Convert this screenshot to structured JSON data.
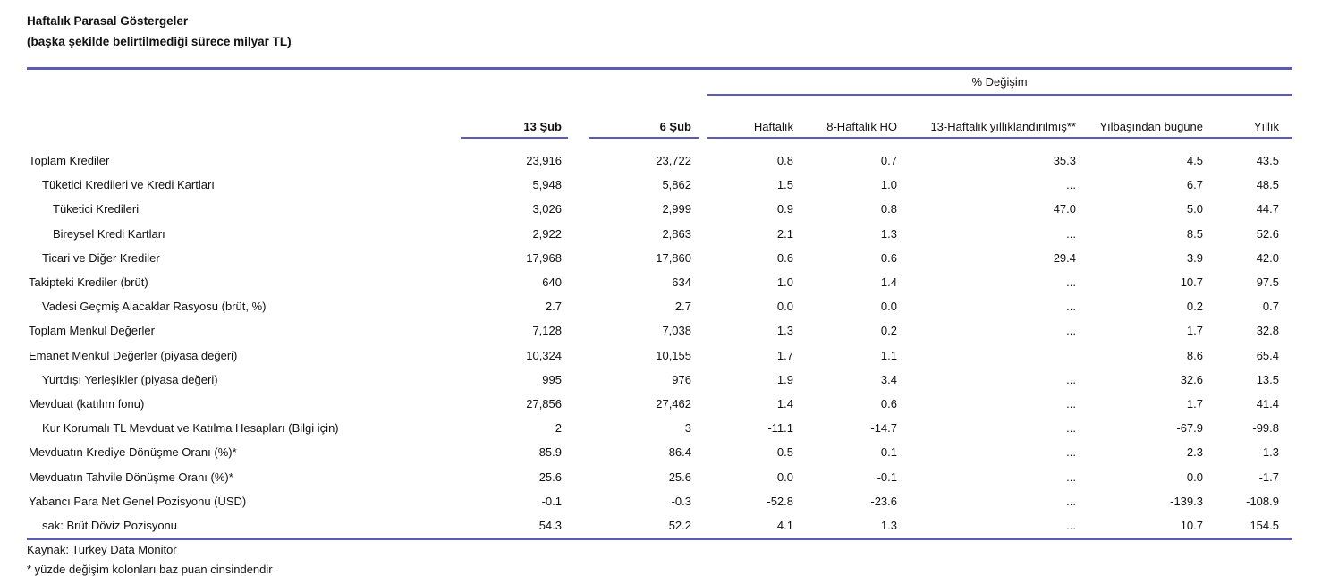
{
  "page": {
    "title": "Haftalık Parasal Göstergeler",
    "subtitle": "(başka şekilde belirtilmediği sürece milyar TL)"
  },
  "colors": {
    "rule": "#5b5bb5",
    "text": "#111111"
  },
  "table": {
    "group_header": "% Değişim",
    "columns": [
      {
        "text": "13 Şub",
        "bold": true
      },
      {
        "text": "6 Şub",
        "bold": true
      },
      {
        "text": "Haftalık",
        "bold": false
      },
      {
        "text": "8-Haftalık HO",
        "bold": false
      },
      {
        "text": "13-Haftalık\nyıllıklandırılmış**",
        "bold": false
      },
      {
        "text": "Yılbaşından\nbugüne",
        "bold": false
      },
      {
        "text": "Yıllık",
        "bold": false
      }
    ],
    "rows": [
      {
        "label": "Toplam Krediler",
        "indent": 0,
        "values": [
          "23,916",
          "23,722",
          "0.8",
          "0.7",
          "35.3",
          "4.5",
          "43.5"
        ]
      },
      {
        "label": "Tüketici Kredileri ve Kredi Kartları",
        "indent": 1,
        "values": [
          "5,948",
          "5,862",
          "1.5",
          "1.0",
          "...",
          "6.7",
          "48.5"
        ]
      },
      {
        "label": "Tüketici Kredileri",
        "indent": 2,
        "values": [
          "3,026",
          "2,999",
          "0.9",
          "0.8",
          "47.0",
          "5.0",
          "44.7"
        ]
      },
      {
        "label": "Bireysel Kredi Kartları",
        "indent": 2,
        "values": [
          "2,922",
          "2,863",
          "2.1",
          "1.3",
          "...",
          "8.5",
          "52.6"
        ]
      },
      {
        "label": "Ticari ve Diğer Krediler",
        "indent": 1,
        "values": [
          "17,968",
          "17,860",
          "0.6",
          "0.6",
          "29.4",
          "3.9",
          "42.0"
        ]
      },
      {
        "label": "Takipteki Krediler (brüt)",
        "indent": 0,
        "values": [
          "640",
          "634",
          "1.0",
          "1.4",
          "...",
          "10.7",
          "97.5"
        ]
      },
      {
        "label": "Vadesi Geçmiş Alacaklar Rasyosu (brüt, %)",
        "indent": 1,
        "values": [
          "2.7",
          "2.7",
          "0.0",
          "0.0",
          "...",
          "0.2",
          "0.7"
        ]
      },
      {
        "label": "Toplam Menkul Değerler",
        "indent": 0,
        "values": [
          "7,128",
          "7,038",
          "1.3",
          "0.2",
          "...",
          "1.7",
          "32.8"
        ]
      },
      {
        "label": "Emanet Menkul Değerler (piyasa değeri)",
        "indent": 0,
        "values": [
          "10,324",
          "10,155",
          "1.7",
          "1.1",
          "",
          "8.6",
          "65.4"
        ]
      },
      {
        "label": "Yurtdışı Yerleşikler (piyasa değeri)",
        "indent": 1,
        "values": [
          "995",
          "976",
          "1.9",
          "3.4",
          "...",
          "32.6",
          "13.5"
        ]
      },
      {
        "label": "Mevduat (katılım fonu)",
        "indent": 0,
        "values": [
          "27,856",
          "27,462",
          "1.4",
          "0.6",
          "...",
          "1.7",
          "41.4"
        ]
      },
      {
        "label": "Kur Korumalı TL Mevduat ve Katılma Hesapları (Bilgi için)",
        "indent": 1,
        "values": [
          "2",
          "3",
          "-11.1",
          "-14.7",
          "...",
          "-67.9",
          "-99.8"
        ]
      },
      {
        "label": "Mevduatın Krediye Dönüşme Oranı (%)*",
        "indent": 0,
        "values": [
          "85.9",
          "86.4",
          "-0.5",
          "0.1",
          "...",
          "2.3",
          "1.3"
        ]
      },
      {
        "label": "Mevduatın Tahvile Dönüşme Oranı (%)*",
        "indent": 0,
        "values": [
          "25.6",
          "25.6",
          "0.0",
          "-0.1",
          "...",
          "0.0",
          "-1.7"
        ]
      },
      {
        "label": "Yabancı Para Net Genel Pozisyonu (USD)",
        "indent": 0,
        "values": [
          "-0.1",
          "-0.3",
          "-52.8",
          "-23.6",
          "...",
          "-139.3",
          "-108.9"
        ]
      },
      {
        "label": "sak: Brüt Döviz Pozisyonu",
        "indent": 1,
        "values": [
          "54.3",
          "52.2",
          "4.1",
          "1.3",
          "...",
          "10.7",
          "154.5"
        ]
      }
    ]
  },
  "footer": {
    "source": "Kaynak: Turkey Data Monitor",
    "footnote": "* yüzde değişim kolonları baz puan cinsindendir"
  }
}
